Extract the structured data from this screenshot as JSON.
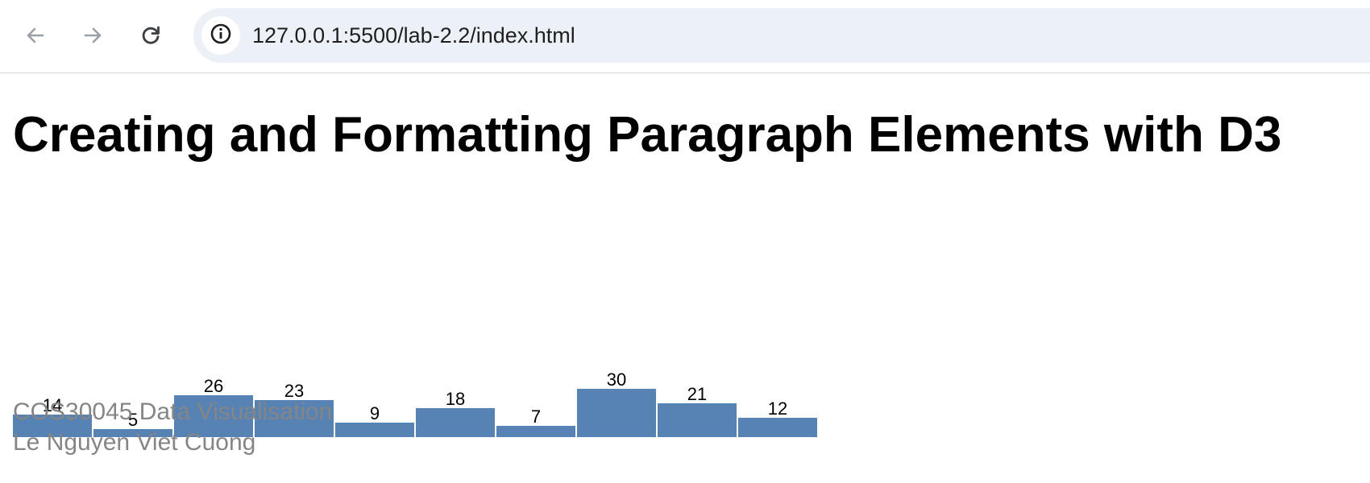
{
  "browser": {
    "back_icon": "arrow-left-icon",
    "forward_icon": "arrow-right-icon",
    "reload_icon": "reload-icon",
    "site_info_icon": "info-icon",
    "url": "127.0.0.1:5500/lab-2.2/index.html"
  },
  "page": {
    "title": "Creating and Formatting Paragraph Elements with D3",
    "footer": {
      "course": "COS30045 Data Visualisation",
      "author": "Le Nguyen Viet Cuong"
    }
  },
  "chart_data": {
    "type": "bar",
    "categories": [
      "",
      "",
      "",
      "",
      "",
      "",
      "",
      "",
      "",
      ""
    ],
    "values": [
      14,
      5,
      26,
      23,
      9,
      18,
      7,
      30,
      21,
      12
    ],
    "bar_color": "#5782b4",
    "title": "",
    "xlabel": "",
    "ylabel": "",
    "grid": false
  }
}
